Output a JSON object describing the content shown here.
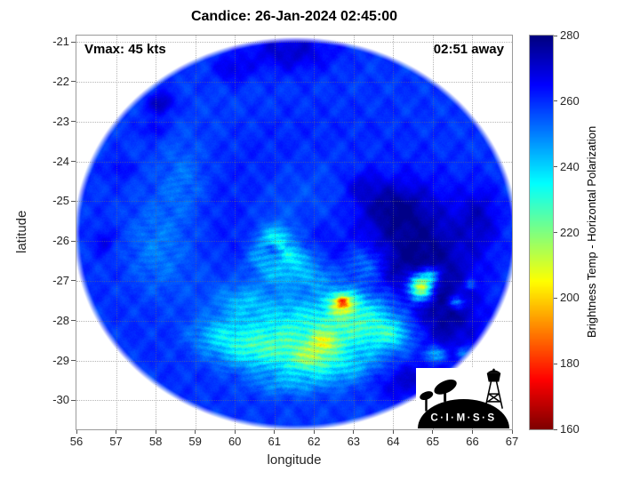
{
  "title": "Candice: 26-Jan-2024 02:45:00",
  "overlay": {
    "vmax_label": "Vmax: 45 kts",
    "time_label": "02:51 away"
  },
  "axes": {
    "xlabel": "longitude",
    "ylabel": "latitude",
    "x_ticks": [
      "56",
      "57",
      "58",
      "59",
      "60",
      "61",
      "62",
      "63",
      "64",
      "65",
      "66",
      "67"
    ],
    "y_ticks": [
      "-21",
      "-22",
      "-23",
      "-24",
      "-25",
      "-26",
      "-27",
      "-28",
      "-29",
      "-30"
    ]
  },
  "colorbar": {
    "label": "Brightness Temp - Horizontal Polarization",
    "ticks": [
      "280",
      "260",
      "240",
      "220",
      "200",
      "180",
      "160"
    ],
    "min": 160,
    "max": 280
  },
  "logo": {
    "text": "C·I·M·S·S"
  },
  "chart_data": {
    "type": "heatmap",
    "title": "Candice: 26-Jan-2024 02:45:00",
    "xlabel": "longitude",
    "ylabel": "latitude",
    "xlim": [
      56,
      67
    ],
    "ylim": [
      -30.73,
      -20.84
    ],
    "x_ticks": [
      56,
      57,
      58,
      59,
      60,
      61,
      62,
      63,
      64,
      65,
      66,
      67
    ],
    "y_ticks": [
      -21,
      -22,
      -23,
      -24,
      -25,
      -26,
      -27,
      -28,
      -29,
      -30
    ],
    "grid": true,
    "colormap": "jet_reversed",
    "value_label": "Brightness Temp - Horizontal Polarization",
    "value_range": [
      160,
      280
    ],
    "swath": {
      "center_lon": 61.54,
      "center_lat": -25.82,
      "rx_deg": 5.45,
      "ry_deg": 4.8
    },
    "base_temp_k": 259,
    "storm": {
      "name": "Candice",
      "datetime": "26-Jan-2024 02:45:00",
      "vmax_kts": 45,
      "time_to_obs": "02:51 away",
      "approx_center": [
        61.25,
        -26.2
      ]
    },
    "features": [
      {
        "lon": 64.55,
        "lat": -26.45,
        "sx": 1.35,
        "sy": 1.5,
        "amp": 21
      },
      {
        "lon": 63.9,
        "lat": -25.15,
        "sx": 0.85,
        "sy": 0.6,
        "amp": 13
      },
      {
        "lon": 65.4,
        "lat": -28.0,
        "sx": 0.8,
        "sy": 0.9,
        "amp": 13
      },
      {
        "lon": 64.3,
        "lat": -29.5,
        "sx": 0.95,
        "sy": 0.5,
        "amp": 12
      },
      {
        "lon": 61.4,
        "lat": -21.25,
        "sx": 1.1,
        "sy": 0.5,
        "amp": 12
      },
      {
        "lon": 59.95,
        "lat": -21.7,
        "sx": 0.45,
        "sy": 0.35,
        "amp": 9
      },
      {
        "lon": 58.15,
        "lat": -22.55,
        "sx": 0.33,
        "sy": 0.28,
        "amp": 15
      },
      {
        "lon": 57.95,
        "lat": -23.2,
        "sx": 0.28,
        "sy": 0.22,
        "amp": 9
      },
      {
        "lon": 57.1,
        "lat": -24.2,
        "sx": 0.3,
        "sy": 0.25,
        "amp": 7
      },
      {
        "lon": 66.2,
        "lat": -25.4,
        "sx": 0.5,
        "sy": 0.8,
        "amp": 10
      },
      {
        "lon": 63.2,
        "lat": -24.6,
        "sx": 0.5,
        "sy": 0.4,
        "amp": 8
      },
      {
        "lon": 56.7,
        "lat": -26.0,
        "sx": 0.25,
        "sy": 0.3,
        "amp": 8
      },
      {
        "lon": 61.9,
        "lat": -28.25,
        "sx": 1.7,
        "sy": 0.8,
        "amp": -26
      },
      {
        "lon": 63.25,
        "lat": -27.9,
        "sx": 1.0,
        "sy": 0.7,
        "amp": -20
      },
      {
        "lon": 60.55,
        "lat": -28.75,
        "sx": 1.05,
        "sy": 0.5,
        "amp": -20
      },
      {
        "lon": 62.4,
        "lat": -29.15,
        "sx": 1.2,
        "sy": 0.45,
        "amp": -16
      },
      {
        "lon": 59.6,
        "lat": -28.35,
        "sx": 0.7,
        "sy": 0.4,
        "amp": -12
      },
      {
        "lon": 62.72,
        "lat": -27.55,
        "sx": 0.34,
        "sy": 0.28,
        "amp": -40
      },
      {
        "lon": 62.72,
        "lat": -27.52,
        "sx": 0.13,
        "sy": 0.11,
        "amp": -26
      },
      {
        "lon": 62.25,
        "lat": -28.55,
        "sx": 0.38,
        "sy": 0.27,
        "amp": -24
      },
      {
        "lon": 61.85,
        "lat": -28.95,
        "sx": 0.5,
        "sy": 0.3,
        "amp": -16
      },
      {
        "lon": 63.95,
        "lat": -28.35,
        "sx": 0.5,
        "sy": 0.35,
        "amp": -16
      },
      {
        "lon": 64.7,
        "lat": -27.15,
        "sx": 0.3,
        "sy": 0.32,
        "amp": -62
      },
      {
        "lon": 64.95,
        "lat": -26.85,
        "sx": 0.22,
        "sy": 0.2,
        "amp": -24
      },
      {
        "lon": 65.6,
        "lat": -27.55,
        "sx": 0.2,
        "sy": 0.17,
        "amp": -22
      },
      {
        "lon": 65.95,
        "lat": -27.1,
        "sx": 0.14,
        "sy": 0.13,
        "amp": -16
      },
      {
        "lon": 65.05,
        "lat": -28.85,
        "sx": 0.26,
        "sy": 0.2,
        "amp": -20
      },
      {
        "lon": 65.75,
        "lat": -28.8,
        "sx": 0.18,
        "sy": 0.15,
        "amp": -14
      },
      {
        "lon": 61.05,
        "lat": -25.95,
        "sx": 0.5,
        "sy": 0.32,
        "amp": -20
      },
      {
        "lon": 61.5,
        "lat": -26.4,
        "sx": 0.5,
        "sy": 0.3,
        "amp": -18
      },
      {
        "lon": 60.65,
        "lat": -26.45,
        "sx": 0.4,
        "sy": 0.3,
        "amp": -14
      },
      {
        "lon": 61.1,
        "lat": -26.85,
        "sx": 0.55,
        "sy": 0.28,
        "amp": -12
      },
      {
        "lon": 60.2,
        "lat": -27.5,
        "sx": 0.6,
        "sy": 0.4,
        "amp": -10
      },
      {
        "lon": 58.0,
        "lat": -26.2,
        "sx": 0.7,
        "sy": 1.1,
        "amp": -7
      },
      {
        "lon": 58.7,
        "lat": -24.5,
        "sx": 0.55,
        "sy": 0.9,
        "amp": -6
      },
      {
        "lon": 63.3,
        "lat": -26.6,
        "sx": 0.5,
        "sy": 0.45,
        "amp": -14
      },
      {
        "lon": 62.1,
        "lat": -26.9,
        "sx": 0.5,
        "sy": 0.35,
        "amp": -12
      },
      {
        "lon": 61.3,
        "lat": -29.6,
        "sx": 0.9,
        "sy": 0.3,
        "amp": -10
      },
      {
        "lon": 60.95,
        "lat": -26.2,
        "sx": 0.16,
        "sy": 0.13,
        "amp": 10
      }
    ]
  }
}
